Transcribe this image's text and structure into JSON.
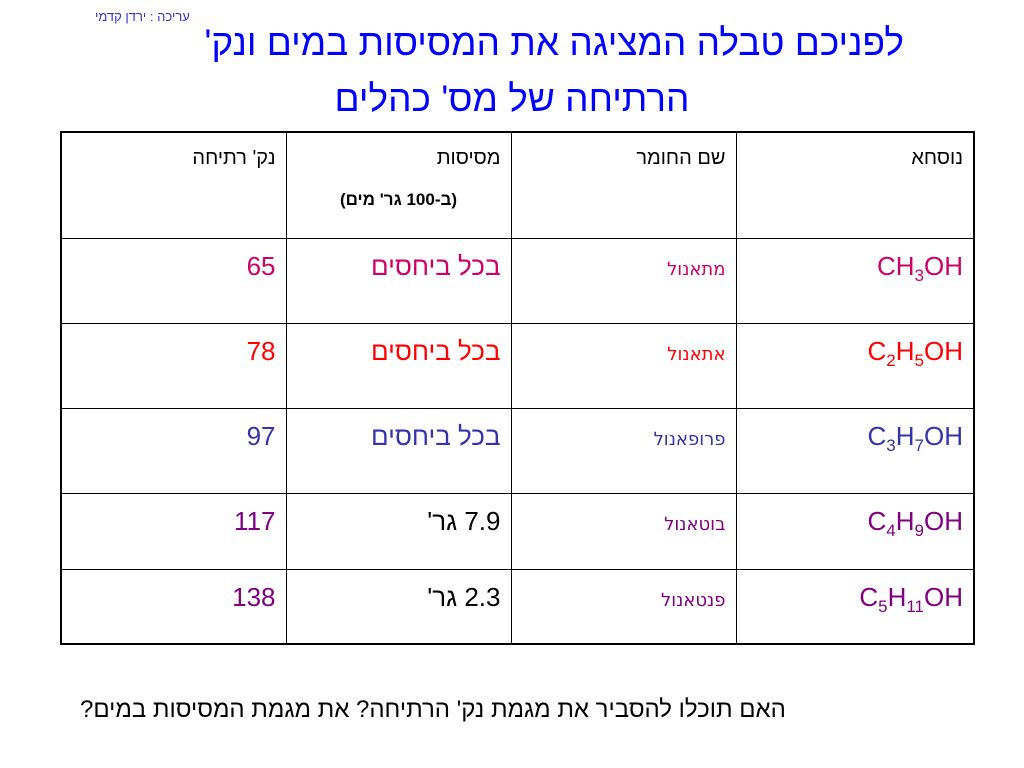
{
  "credit": "עריכה : ירדן קדמי",
  "title": {
    "line1": "לפניכם טבלה המציגה את המסיסות במים ונק'",
    "line2": "הרתיחה של מס' כהלים"
  },
  "table": {
    "headers": {
      "formula": "נוסחא",
      "name": "שם החומר",
      "solubility": "מסיסות",
      "solubility_sub": "(ב-100 גר' מים)",
      "boiling_point": "נק' רתיחה"
    },
    "rows": [
      {
        "formula_parts": [
          "CH",
          "3",
          "OH"
        ],
        "name": "מתאנול",
        "solubility": "בכל ביחסים",
        "boiling_point": "65"
      },
      {
        "formula_parts": [
          "C",
          "2",
          "H",
          "5",
          "OH"
        ],
        "name": "אתאנול",
        "solubility": "בכל ביחסים",
        "boiling_point": "78"
      },
      {
        "formula_parts": [
          "C",
          "3",
          "H",
          "7",
          "OH"
        ],
        "name": "פרופאנול",
        "solubility": "בכל ביחסים",
        "boiling_point": "97"
      },
      {
        "formula_parts": [
          "C",
          "4",
          "H",
          "9",
          "OH"
        ],
        "name": "בוטאנול",
        "solubility": "7.9 גר'",
        "boiling_point": "117"
      },
      {
        "formula_parts": [
          "C",
          "5",
          "H",
          "11",
          "OH"
        ],
        "name": "פנטאנול",
        "solubility": "2.3 גר'",
        "boiling_point": "138"
      }
    ]
  },
  "question": "האם תוכלו להסביר את מגמת נק' הרתיחה? את מגמת המסיסות במים?",
  "colors": {
    "title": "#0000ff",
    "red": "#ff0000",
    "blue": "#3333aa",
    "purple": "#800080",
    "crimson": "#cc0066"
  }
}
